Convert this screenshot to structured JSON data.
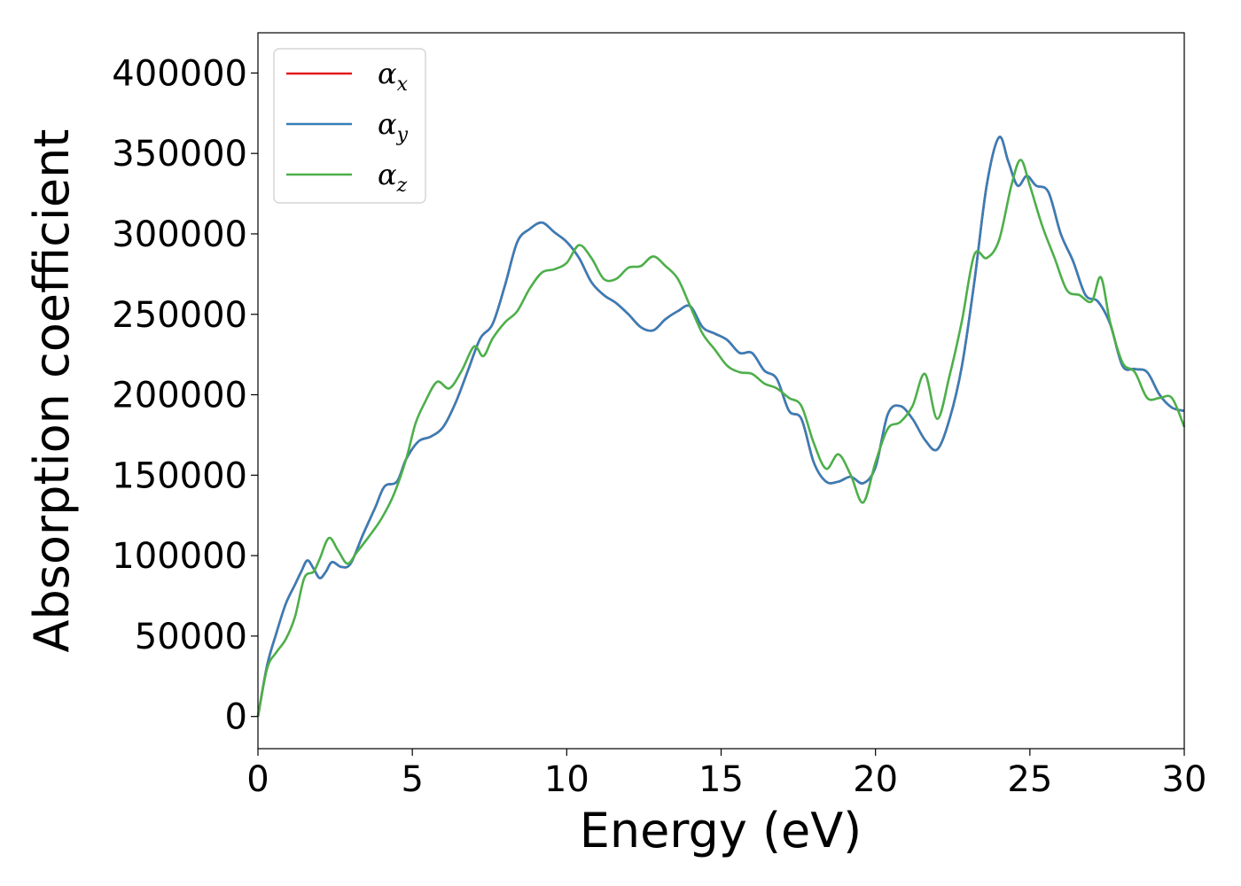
{
  "chart_data": {
    "type": "line",
    "xlabel": "Energy (eV)",
    "ylabel": "Absorption coefficient",
    "xlim": [
      0,
      30
    ],
    "ylim": [
      -20000,
      425000
    ],
    "xticks": [
      0,
      5,
      10,
      15,
      20,
      25,
      30
    ],
    "yticks": [
      0,
      50000,
      100000,
      150000,
      200000,
      250000,
      300000,
      350000,
      400000
    ],
    "grid": false,
    "legend": {
      "placement": "top-left"
    },
    "series": [
      {
        "name": "α",
        "subscript": "x",
        "color": "#e41a1c",
        "x": [
          0,
          0.3,
          0.6,
          0.9,
          1.2,
          1.4,
          1.6,
          1.8,
          2.0,
          2.2,
          2.4,
          2.7,
          3.0,
          3.4,
          3.8,
          4.1,
          4.5,
          4.8,
          5.2,
          5.6,
          6.0,
          6.4,
          6.8,
          7.2,
          7.6,
          8.0,
          8.4,
          8.8,
          9.2,
          9.6,
          10.0,
          10.4,
          10.8,
          11.2,
          11.6,
          12.0,
          12.4,
          12.8,
          13.2,
          13.6,
          14.0,
          14.4,
          14.8,
          15.2,
          15.6,
          16.0,
          16.4,
          16.8,
          17.2,
          17.6,
          18.0,
          18.4,
          18.8,
          19.2,
          19.6,
          20.0,
          20.4,
          20.8,
          21.2,
          21.6,
          22.0,
          22.4,
          22.8,
          23.2,
          23.6,
          24.0,
          24.3,
          24.6,
          24.9,
          25.2,
          25.6,
          26.0,
          26.4,
          26.8,
          27.2,
          27.6,
          28.0,
          28.4,
          28.8,
          29.2,
          29.6,
          30.0
        ],
        "y": [
          0,
          32000,
          52000,
          70000,
          82000,
          90000,
          97000,
          92000,
          86000,
          90000,
          96000,
          93000,
          95000,
          113000,
          130000,
          143000,
          146000,
          160000,
          171000,
          174000,
          180000,
          195000,
          215000,
          235000,
          244000,
          268000,
          295000,
          303000,
          307000,
          301000,
          295000,
          285000,
          270000,
          262000,
          257000,
          250000,
          242000,
          240000,
          247000,
          252000,
          255000,
          242000,
          238000,
          234000,
          226000,
          226000,
          215000,
          210000,
          190000,
          185000,
          158000,
          146000,
          146000,
          149000,
          145000,
          155000,
          188000,
          193000,
          185000,
          172000,
          166000,
          185000,
          218000,
          270000,
          330000,
          360000,
          345000,
          330000,
          336000,
          330000,
          326000,
          300000,
          283000,
          262000,
          258000,
          244000,
          218000,
          216000,
          214000,
          200000,
          192000,
          190000
        ]
      },
      {
        "name": "α",
        "subscript": "y",
        "color": "#377eb8",
        "x": [
          0,
          0.3,
          0.6,
          0.9,
          1.2,
          1.4,
          1.6,
          1.8,
          2.0,
          2.2,
          2.4,
          2.7,
          3.0,
          3.4,
          3.8,
          4.1,
          4.5,
          4.8,
          5.2,
          5.6,
          6.0,
          6.4,
          6.8,
          7.2,
          7.6,
          8.0,
          8.4,
          8.8,
          9.2,
          9.6,
          10.0,
          10.4,
          10.8,
          11.2,
          11.6,
          12.0,
          12.4,
          12.8,
          13.2,
          13.6,
          14.0,
          14.4,
          14.8,
          15.2,
          15.6,
          16.0,
          16.4,
          16.8,
          17.2,
          17.6,
          18.0,
          18.4,
          18.8,
          19.2,
          19.6,
          20.0,
          20.4,
          20.8,
          21.2,
          21.6,
          22.0,
          22.4,
          22.8,
          23.2,
          23.6,
          24.0,
          24.3,
          24.6,
          24.9,
          25.2,
          25.6,
          26.0,
          26.4,
          26.8,
          27.2,
          27.6,
          28.0,
          28.4,
          28.8,
          29.2,
          29.6,
          30.0
        ],
        "y": [
          0,
          32000,
          52000,
          70000,
          82000,
          90000,
          97000,
          92000,
          86000,
          90000,
          96000,
          93000,
          95000,
          113000,
          130000,
          143000,
          146000,
          160000,
          171000,
          174000,
          180000,
          195000,
          215000,
          235000,
          244000,
          268000,
          295000,
          303000,
          307000,
          301000,
          295000,
          285000,
          270000,
          262000,
          257000,
          250000,
          242000,
          240000,
          247000,
          252000,
          255000,
          242000,
          238000,
          234000,
          226000,
          226000,
          215000,
          210000,
          190000,
          185000,
          158000,
          146000,
          146000,
          149000,
          145000,
          155000,
          188000,
          193000,
          185000,
          172000,
          166000,
          185000,
          218000,
          270000,
          330000,
          360000,
          345000,
          330000,
          336000,
          330000,
          326000,
          300000,
          283000,
          262000,
          258000,
          244000,
          218000,
          216000,
          214000,
          200000,
          192000,
          190000
        ]
      },
      {
        "name": "α",
        "subscript": "z",
        "color": "#4daf4a",
        "x": [
          0,
          0.3,
          0.6,
          0.9,
          1.2,
          1.5,
          1.8,
          2.0,
          2.3,
          2.6,
          2.9,
          3.2,
          3.6,
          4.0,
          4.4,
          4.8,
          5.1,
          5.4,
          5.8,
          6.2,
          6.6,
          7.0,
          7.3,
          7.6,
          8.0,
          8.4,
          8.8,
          9.2,
          9.6,
          10.0,
          10.4,
          10.8,
          11.2,
          11.6,
          12.0,
          12.4,
          12.8,
          13.2,
          13.6,
          14.0,
          14.4,
          14.8,
          15.2,
          15.6,
          16.0,
          16.4,
          16.8,
          17.2,
          17.6,
          18.0,
          18.4,
          18.8,
          19.2,
          19.6,
          20.0,
          20.4,
          20.8,
          21.2,
          21.6,
          22.0,
          22.4,
          22.8,
          23.2,
          23.6,
          24.0,
          24.4,
          24.7,
          25.0,
          25.4,
          25.8,
          26.2,
          26.6,
          27.0,
          27.3,
          27.6,
          28.0,
          28.4,
          28.8,
          29.2,
          29.6,
          30.0
        ],
        "y": [
          0,
          30000,
          40000,
          48000,
          62000,
          86000,
          90000,
          98000,
          111000,
          103000,
          95000,
          102000,
          112000,
          123000,
          138000,
          160000,
          182000,
          195000,
          208000,
          204000,
          215000,
          230000,
          224000,
          235000,
          245000,
          252000,
          266000,
          276000,
          278000,
          282000,
          293000,
          285000,
          272000,
          272000,
          279000,
          280000,
          286000,
          280000,
          272000,
          255000,
          238000,
          228000,
          218000,
          214000,
          213000,
          207000,
          204000,
          198000,
          193000,
          170000,
          154000,
          163000,
          150000,
          133000,
          158000,
          179000,
          183000,
          193000,
          213000,
          185000,
          212000,
          246000,
          287000,
          285000,
          296000,
          330000,
          346000,
          330000,
          305000,
          285000,
          265000,
          262000,
          258000,
          273000,
          245000,
          220000,
          214000,
          198000,
          198000,
          198000,
          180000
        ]
      }
    ]
  }
}
